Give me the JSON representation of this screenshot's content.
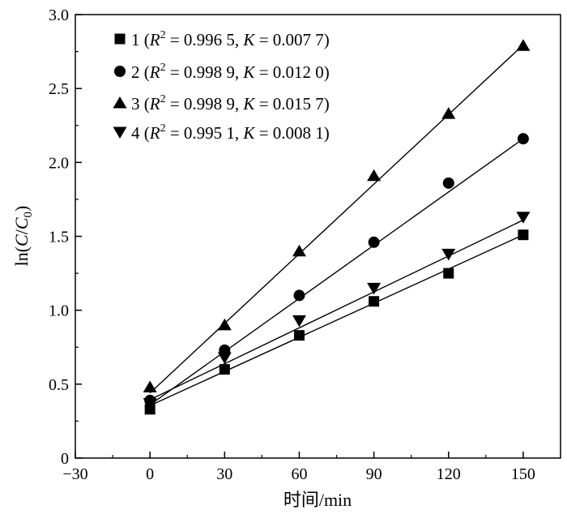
{
  "chart_data": {
    "type": "scatter",
    "title": "",
    "xlabel": "时间/min",
    "ylabel_parts": {
      "prefix": "ln(",
      "num": "C",
      "slash": "/",
      "den": "C",
      "den_sub": "0",
      "suffix": ")"
    },
    "xlim": [
      -30,
      165
    ],
    "ylim": [
      0,
      3.0
    ],
    "xticks": [
      -30,
      0,
      30,
      60,
      90,
      120,
      150
    ],
    "xtick_labels": [
      "−30",
      "0",
      "30",
      "60",
      "90",
      "120",
      "150"
    ],
    "yticks": [
      0,
      0.5,
      1.0,
      1.5,
      2.0,
      2.5,
      3.0
    ],
    "ytick_labels": [
      "0",
      "0.5",
      "1.0",
      "1.5",
      "2.0",
      "2.5",
      "3.0"
    ],
    "grid": false,
    "legend_position": "top-left",
    "series": [
      {
        "name": "1",
        "marker": "square",
        "x": [
          0,
          30,
          60,
          90,
          120,
          150
        ],
        "y": [
          0.33,
          0.6,
          0.83,
          1.06,
          1.25,
          1.51
        ],
        "fit": {
          "intercept": 0.355,
          "slope": 0.0077
        },
        "legend": {
          "id": "1",
          "r2_value": "0.996 5",
          "k_value": "0.007 7"
        }
      },
      {
        "name": "2",
        "marker": "circle",
        "x": [
          0,
          30,
          60,
          90,
          120,
          150
        ],
        "y": [
          0.39,
          0.73,
          1.1,
          1.46,
          1.86,
          2.16
        ],
        "fit": {
          "intercept": 0.36,
          "slope": 0.012
        },
        "legend": {
          "id": "2",
          "r2_value": "0.998 9",
          "k_value": "0.012 0"
        }
      },
      {
        "name": "3",
        "marker": "triangle-up",
        "x": [
          0,
          30,
          60,
          90,
          120,
          150
        ],
        "y": [
          0.48,
          0.9,
          1.4,
          1.91,
          2.33,
          2.79
        ],
        "fit": {
          "intercept": 0.44,
          "slope": 0.0157
        },
        "legend": {
          "id": "3",
          "r2_value": "0.998 9",
          "k_value": "0.015 7"
        }
      },
      {
        "name": "4",
        "marker": "triangle-down",
        "x": [
          0,
          30,
          60,
          90,
          120,
          150
        ],
        "y": [
          0.37,
          0.68,
          0.93,
          1.15,
          1.38,
          1.63
        ],
        "fit": {
          "intercept": 0.395,
          "slope": 0.0081
        },
        "legend": {
          "id": "4",
          "r2_value": "0.995 1",
          "k_value": "0.008 1"
        }
      }
    ]
  },
  "legend_labels": {
    "r_symbol": "R",
    "r_exp": "2",
    "k_symbol": "K",
    "equals": " = ",
    "comma": ", ",
    "open": " (",
    "close": ")"
  }
}
